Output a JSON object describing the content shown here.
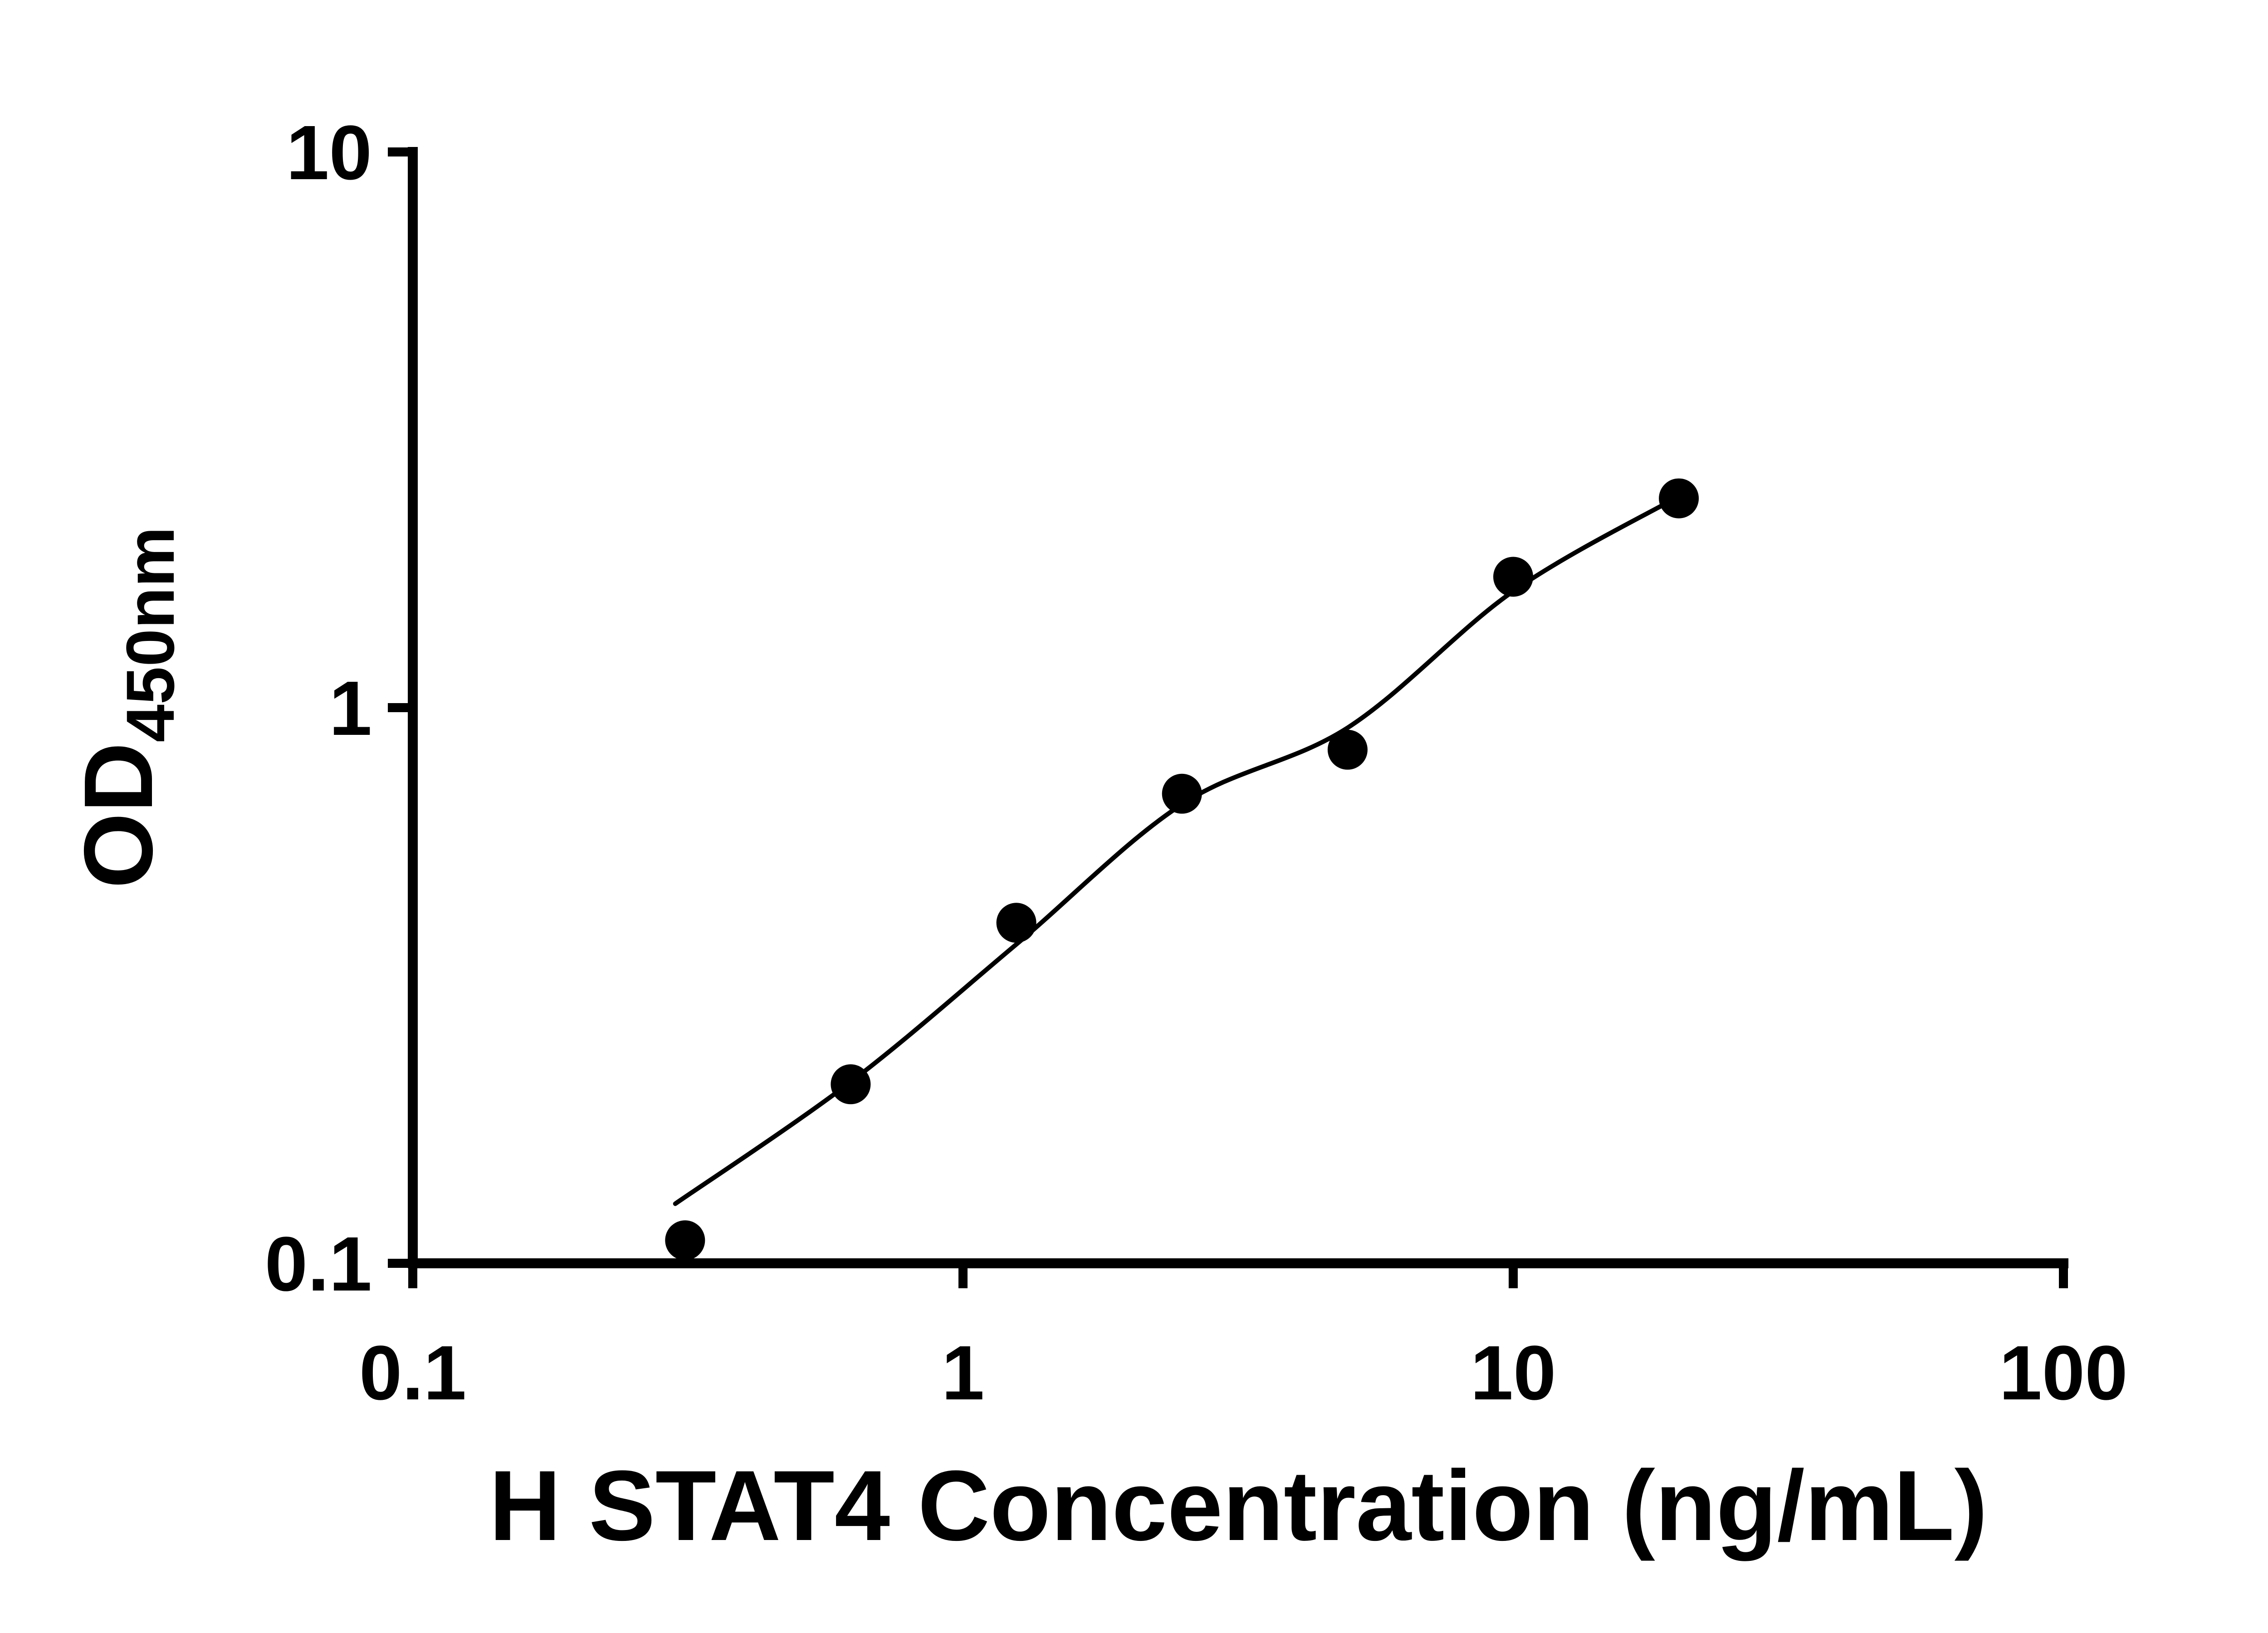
{
  "chart_data": {
    "type": "scatter",
    "title": "",
    "xlabel": "H STAT4 Concentration (ng/mL)",
    "ylabel_main": "OD",
    "ylabel_sub": "450nm",
    "x_scale": "log",
    "y_scale": "log",
    "xlim": [
      0.1,
      100
    ],
    "ylim": [
      0.1,
      10
    ],
    "grid": false,
    "legend": false,
    "point_color": "#000000",
    "line_color": "#000000",
    "x_ticks": [
      {
        "value": 0.1,
        "label": "0.1"
      },
      {
        "value": 1,
        "label": "1"
      },
      {
        "value": 10,
        "label": "10"
      },
      {
        "value": 100,
        "label": "100"
      }
    ],
    "y_ticks": [
      {
        "value": 0.1,
        "label": "0.1"
      },
      {
        "value": 1,
        "label": "1"
      },
      {
        "value": 10,
        "label": "10"
      }
    ],
    "series": [
      {
        "name": "H STAT4 standard curve points",
        "type": "scatter",
        "x": [
          0.3125,
          0.625,
          1.25,
          2.5,
          5,
          10,
          20
        ],
        "y": [
          0.11,
          0.21,
          0.41,
          0.7,
          0.84,
          1.72,
          2.38
        ]
      }
    ],
    "fit_curve": {
      "name": "4PL fitted curve",
      "x": [
        0.3,
        0.625,
        1.25,
        2.5,
        5,
        10,
        20
      ],
      "y": [
        0.128,
        0.212,
        0.375,
        0.67,
        0.92,
        1.62,
        2.4
      ]
    }
  }
}
